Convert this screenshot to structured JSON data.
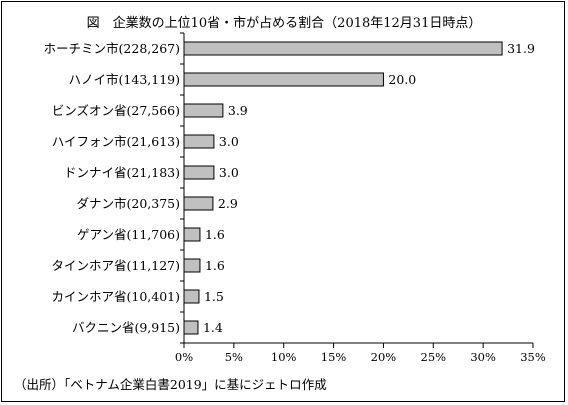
{
  "title": "図　企業数の上位10省・市が占める割合（2018年12月31日時点）",
  "source": "（出所）「ベトナム企業白書2019」に基にジェトロ作成",
  "chart_data": {
    "type": "bar",
    "orientation": "horizontal",
    "title": "図　企業数の上位10省・市が占める割合（2018年12月31日時点）",
    "categories": [
      "ホーチミン市(228,267)",
      "ハノイ市(143,119)",
      "ビンズオン省(27,566)",
      "ハイフォン市(21,613)",
      "ドンナイ省(21,183)",
      "ダナン市(20,375)",
      "ゲアン省(11,706)",
      "タインホア省(11,127)",
      "カインホア省(10,401)",
      "バクニン省(9,915)"
    ],
    "values": [
      31.9,
      20.0,
      3.9,
      3.0,
      3.0,
      2.9,
      1.6,
      1.6,
      1.5,
      1.4
    ],
    "value_labels": [
      "31.9",
      "20.0",
      "3.9",
      "3.0",
      "3.0",
      "2.9",
      "1.6",
      "1.6",
      "1.5",
      "1.4"
    ],
    "xlim": [
      0,
      35
    ],
    "xticks": [
      0,
      5,
      10,
      15,
      20,
      25,
      30,
      35
    ],
    "xtick_labels": [
      "0%",
      "5%",
      "10%",
      "15%",
      "20%",
      "25%",
      "30%",
      "35%"
    ],
    "xlabel": "",
    "ylabel": "",
    "grid": false,
    "bar_color": "#c0c0c0",
    "bar_edge_color": "#000000"
  }
}
